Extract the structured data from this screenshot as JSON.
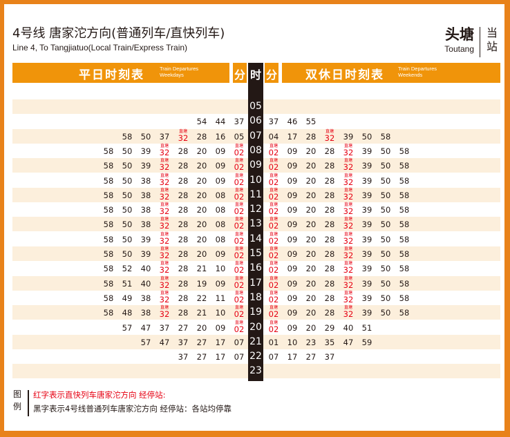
{
  "header": {
    "title_zh": "4号线 唐家沱方向(普通列车/直快列车)",
    "title_en": "Line 4, To Tangjiatuo(Local Train/Express Train)",
    "station_zh": "头塘",
    "station_en": "Toutang",
    "current_station_label": "当站"
  },
  "bands": {
    "weekday_zh": "平日时刻表",
    "weekday_en_1": "Train Departures",
    "weekday_en_2": "Weekdays",
    "weekend_zh": "双休日时刻表",
    "weekend_en_1": "Train Departures",
    "weekend_en_2": "Weekends",
    "minute_label": "分",
    "hour_label": "时"
  },
  "express_tag": "直塘",
  "colors": {
    "accent": "#f0940a",
    "express": "#e60012",
    "border": "#e8821a",
    "shade": "#fcefdc"
  },
  "rows": [
    {
      "hour": "05",
      "wd": [],
      "we": []
    },
    {
      "hour": "06",
      "wd": [
        "54",
        "44",
        "37"
      ],
      "we": [
        "37",
        "46",
        "55"
      ]
    },
    {
      "hour": "07",
      "wd": [
        "58",
        "50",
        "37",
        "32*",
        "28",
        "16",
        "05"
      ],
      "we": [
        "04",
        "17",
        "28",
        "32*",
        "39",
        "50",
        "58"
      ]
    },
    {
      "hour": "08",
      "wd": [
        "58",
        "50",
        "39",
        "32*",
        "28",
        "20",
        "09",
        "02*"
      ],
      "we": [
        "02*",
        "09",
        "20",
        "28",
        "32*",
        "39",
        "50",
        "58"
      ]
    },
    {
      "hour": "09",
      "wd": [
        "58",
        "50",
        "39",
        "32*",
        "28",
        "20",
        "09",
        "02*"
      ],
      "we": [
        "02*",
        "09",
        "20",
        "28",
        "32*",
        "39",
        "50",
        "58"
      ]
    },
    {
      "hour": "10",
      "wd": [
        "58",
        "50",
        "38",
        "32*",
        "28",
        "20",
        "09",
        "02*"
      ],
      "we": [
        "02*",
        "09",
        "20",
        "28",
        "32*",
        "39",
        "50",
        "58"
      ]
    },
    {
      "hour": "11",
      "wd": [
        "58",
        "50",
        "38",
        "32*",
        "28",
        "20",
        "08",
        "02*"
      ],
      "we": [
        "02*",
        "09",
        "20",
        "28",
        "32*",
        "39",
        "50",
        "58"
      ]
    },
    {
      "hour": "12",
      "wd": [
        "58",
        "50",
        "38",
        "32*",
        "28",
        "20",
        "08",
        "02*"
      ],
      "we": [
        "02*",
        "09",
        "20",
        "28",
        "32*",
        "39",
        "50",
        "58"
      ]
    },
    {
      "hour": "13",
      "wd": [
        "58",
        "50",
        "38",
        "32*",
        "28",
        "20",
        "08",
        "02*"
      ],
      "we": [
        "02*",
        "09",
        "20",
        "28",
        "32*",
        "39",
        "50",
        "58"
      ]
    },
    {
      "hour": "14",
      "wd": [
        "58",
        "50",
        "39",
        "32*",
        "28",
        "20",
        "08",
        "02*"
      ],
      "we": [
        "02*",
        "09",
        "20",
        "28",
        "32*",
        "39",
        "50",
        "58"
      ]
    },
    {
      "hour": "15",
      "wd": [
        "58",
        "50",
        "39",
        "32*",
        "28",
        "20",
        "09",
        "02*"
      ],
      "we": [
        "02*",
        "09",
        "20",
        "28",
        "32*",
        "39",
        "50",
        "58"
      ]
    },
    {
      "hour": "16",
      "wd": [
        "58",
        "52",
        "40",
        "32*",
        "28",
        "21",
        "10",
        "02*"
      ],
      "we": [
        "02*",
        "09",
        "20",
        "28",
        "32*",
        "39",
        "50",
        "58"
      ]
    },
    {
      "hour": "17",
      "wd": [
        "58",
        "51",
        "40",
        "32*",
        "28",
        "19",
        "09",
        "02*"
      ],
      "we": [
        "02*",
        "09",
        "20",
        "28",
        "32*",
        "39",
        "50",
        "58"
      ]
    },
    {
      "hour": "18",
      "wd": [
        "58",
        "49",
        "38",
        "32*",
        "28",
        "22",
        "11",
        "02*"
      ],
      "we": [
        "02*",
        "09",
        "20",
        "28",
        "32*",
        "39",
        "50",
        "58"
      ]
    },
    {
      "hour": "19",
      "wd": [
        "58",
        "48",
        "38",
        "32*",
        "28",
        "21",
        "10",
        "02*"
      ],
      "we": [
        "02*",
        "09",
        "20",
        "28",
        "32*",
        "39",
        "50",
        "58"
      ]
    },
    {
      "hour": "20",
      "wd": [
        "57",
        "47",
        "37",
        "27",
        "20",
        "09",
        "02*"
      ],
      "we": [
        "02*",
        "09",
        "20",
        "29",
        "40",
        "51"
      ]
    },
    {
      "hour": "21",
      "wd": [
        "57",
        "47",
        "37",
        "27",
        "17",
        "07"
      ],
      "we": [
        "01",
        "10",
        "23",
        "35",
        "47",
        "59"
      ]
    },
    {
      "hour": "22",
      "wd": [
        "37",
        "27",
        "17",
        "07"
      ],
      "we": [
        "07",
        "17",
        "27",
        "37"
      ]
    },
    {
      "hour": "23",
      "wd": [],
      "we": []
    }
  ],
  "legend": {
    "key_1": "图",
    "key_2": "例",
    "red_text": "红字表示直快列车唐家沱方向  经停站:",
    "black_text": "黑字表示4号线普通列车唐家沱方向  经停站：各站均停靠"
  }
}
